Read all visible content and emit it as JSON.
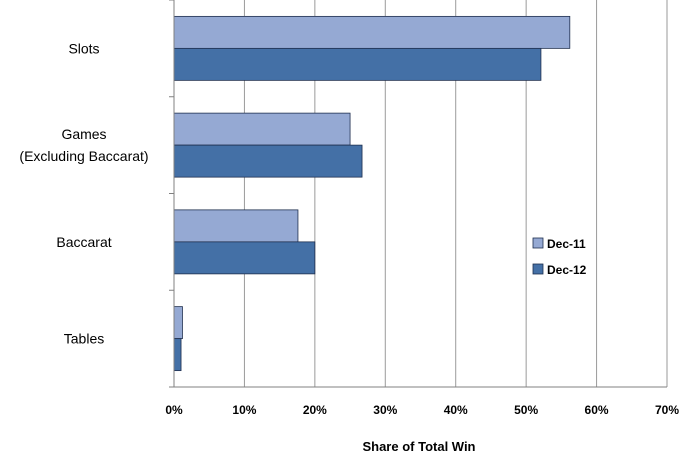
{
  "chart_data": {
    "type": "bar",
    "orientation": "horizontal",
    "categories": [
      "Slots",
      "Games\n(Excluding Baccarat)",
      "Baccarat",
      "Tables"
    ],
    "series": [
      {
        "name": "Dec-11",
        "color": "#95A9D3",
        "values": [
          56.2,
          25.0,
          17.6,
          1.2
        ]
      },
      {
        "name": "Dec-12",
        "color": "#4470A6",
        "values": [
          52.1,
          26.7,
          20.0,
          1.0
        ]
      }
    ],
    "xlim": [
      0,
      70
    ],
    "xticks": [
      0,
      10,
      20,
      30,
      40,
      50,
      60,
      70
    ],
    "tick_suffix": "%",
    "xlabel": "Share of Total Win",
    "ylabel": "",
    "grid": true,
    "legend_position": "right"
  }
}
